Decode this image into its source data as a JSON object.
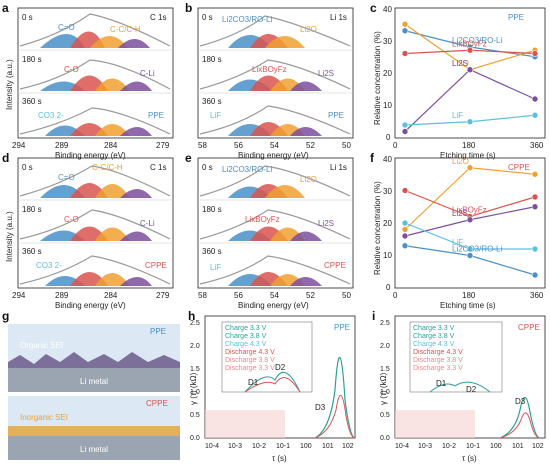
{
  "figure": {
    "panels": {
      "a": {
        "letter": "a",
        "element_label": "C 1s",
        "rows": [
          {
            "time": "0 s",
            "labels": [
              "C=O",
              "C-C/C-H"
            ]
          },
          {
            "time": "180 s",
            "labels": [
              "C-O",
              "C-Li"
            ]
          },
          {
            "time": "360 s",
            "labels": [
              "CO3 2-",
              "PPE"
            ]
          }
        ],
        "xlabel": "Binding energy (eV)",
        "ylabel": "Intensity (a.u.)",
        "xticks": [
          "294",
          "289",
          "284",
          "279"
        ]
      },
      "b": {
        "letter": "b",
        "element_label": "Li 1s",
        "rows": [
          {
            "time": "0 s",
            "labels": [
              "Li2CO3/RO-Li",
              "Li2O"
            ]
          },
          {
            "time": "180 s",
            "labels": [
              "LixBOyFz",
              "Li2S"
            ]
          },
          {
            "time": "360 s",
            "labels": [
              "LiF",
              "PPE"
            ]
          }
        ],
        "xlabel": "Binding energy (eV)",
        "xticks": [
          "58",
          "56",
          "54",
          "52",
          "50"
        ]
      },
      "c": {
        "letter": "c",
        "tag": "PPE",
        "xlabel": "Etching time (s)",
        "ylabel": "Relative concentration (%)",
        "xticks": [
          "0",
          "180",
          "360"
        ],
        "yticks": [
          "0",
          "10",
          "20",
          "30",
          "40"
        ],
        "series_labels": [
          "Li2CO3/RO-Li",
          "Li2O",
          "LixBOyFz",
          "Li2S",
          "LiF"
        ]
      },
      "d": {
        "letter": "d",
        "element_label": "C 1s",
        "rows": [
          {
            "time": "0 s",
            "labels": [
              "C=O",
              "C-C/C-H"
            ]
          },
          {
            "time": "180 s",
            "labels": [
              "C-O",
              "C-Li"
            ]
          },
          {
            "time": "360 s",
            "labels": [
              "CO3 2-",
              "CPPE"
            ]
          }
        ],
        "xlabel": "Binding energy (eV)",
        "ylabel": "Intensity (a.u.)",
        "xticks": [
          "294",
          "289",
          "284",
          "279"
        ]
      },
      "e": {
        "letter": "e",
        "element_label": "Li 1s",
        "rows": [
          {
            "time": "0 s",
            "labels": [
              "Li2CO3/RO-Li",
              "Li2O"
            ]
          },
          {
            "time": "180 s",
            "labels": [
              "LixBOyFz",
              "Li2S"
            ]
          },
          {
            "time": "360 s",
            "labels": [
              "LiF",
              "CPPE"
            ]
          }
        ],
        "xlabel": "Binding energy (eV)",
        "xticks": [
          "58",
          "56",
          "54",
          "52",
          "50"
        ]
      },
      "f": {
        "letter": "f",
        "tag": "CPPE",
        "xlabel": "Etching time (s)",
        "ylabel": "Relative concentration (%)",
        "xticks": [
          "0",
          "180",
          "360"
        ],
        "yticks": [
          "0",
          "10",
          "20",
          "30",
          "40"
        ],
        "series_labels": [
          "Li2O",
          "LixBOyFz",
          "Li2S",
          "LiF",
          "Li2CO3/RO-Li"
        ]
      },
      "g": {
        "letter": "g",
        "top_tag": "PPE",
        "top_layer": "Organic SEI",
        "top_metal": "Li metal",
        "bottom_tag": "CPPE",
        "bottom_layer": "Inorganic SEI",
        "bottom_metal": "Li metal"
      },
      "h": {
        "letter": "h",
        "tag": "PPE",
        "ylabel": "γ (τ) (kΩ)",
        "xlabel": "τ (s)",
        "peaks": [
          "D1",
          "D2",
          "D3"
        ],
        "xticks": [
          "10-4",
          "10-3",
          "10-2",
          "10-1",
          "100",
          "101",
          "102"
        ],
        "yticks": [
          "0.0",
          "0.5",
          "1.0",
          "1.5",
          "2.0",
          "2.5"
        ],
        "legend": [
          "Charge 3.3 V",
          "Charge 3.8 V",
          "Charge 4.3 V",
          "Discharge 4.3 V",
          "Discharge 3.8 V",
          "Discharge 3.3 V"
        ]
      },
      "i": {
        "letter": "i",
        "tag": "CPPE",
        "ylabel": "γ (τ) (kΩ)",
        "xlabel": "τ (s)",
        "peaks": [
          "D1",
          "D2",
          "D3"
        ],
        "xticks": [
          "10-4",
          "10-3",
          "10-2",
          "10-1",
          "100",
          "101",
          "102"
        ],
        "yticks": [
          "0.0",
          "0.5",
          "1.0",
          "1.5",
          "2.0",
          "2.5"
        ],
        "legend": [
          "Charge 3.3 V",
          "Charge 3.8 V",
          "Charge 4.3 V",
          "Discharge 4.3 V",
          "Discharge 3.8 V",
          "Discharge 3.3 V"
        ]
      }
    },
    "colors": {
      "blue": "#4a90c8",
      "red": "#d9534f",
      "orange": "#f0a030",
      "purple": "#7b4f9d",
      "cyan": "#5bc0de",
      "pink": "#e88a8a",
      "gray": "#999999",
      "teal": "#2aa198",
      "pinkshade": "#f5d0d0"
    }
  },
  "chart_data": [
    {
      "type": "line",
      "title": "PPE",
      "xlabel": "Etching time (s)",
      "ylabel": "Relative concentration (%)",
      "x": [
        0,
        180,
        360
      ],
      "ylim": [
        0,
        40
      ],
      "series": [
        {
          "name": "Li2CO3/RO-Li",
          "values": [
            33,
            28,
            25
          ]
        },
        {
          "name": "Li2O",
          "values": [
            35,
            21,
            27
          ]
        },
        {
          "name": "LixBOyFz",
          "values": [
            26,
            27,
            26
          ]
        },
        {
          "name": "Li2S",
          "values": [
            2,
            21,
            12
          ]
        },
        {
          "name": "LiF",
          "values": [
            4,
            5,
            7
          ]
        }
      ]
    },
    {
      "type": "line",
      "title": "CPPE",
      "xlabel": "Etching time (s)",
      "ylabel": "Relative concentration (%)",
      "x": [
        0,
        180,
        360
      ],
      "ylim": [
        0,
        40
      ],
      "series": [
        {
          "name": "Li2O",
          "values": [
            18,
            37,
            35
          ]
        },
        {
          "name": "LixBOyFz",
          "values": [
            30,
            22,
            28
          ]
        },
        {
          "name": "Li2S",
          "values": [
            16,
            21,
            25
          ]
        },
        {
          "name": "LiF",
          "values": [
            20,
            12,
            12
          ]
        },
        {
          "name": "Li2CO3/RO-Li",
          "values": [
            13,
            10,
            4
          ]
        }
      ]
    }
  ]
}
